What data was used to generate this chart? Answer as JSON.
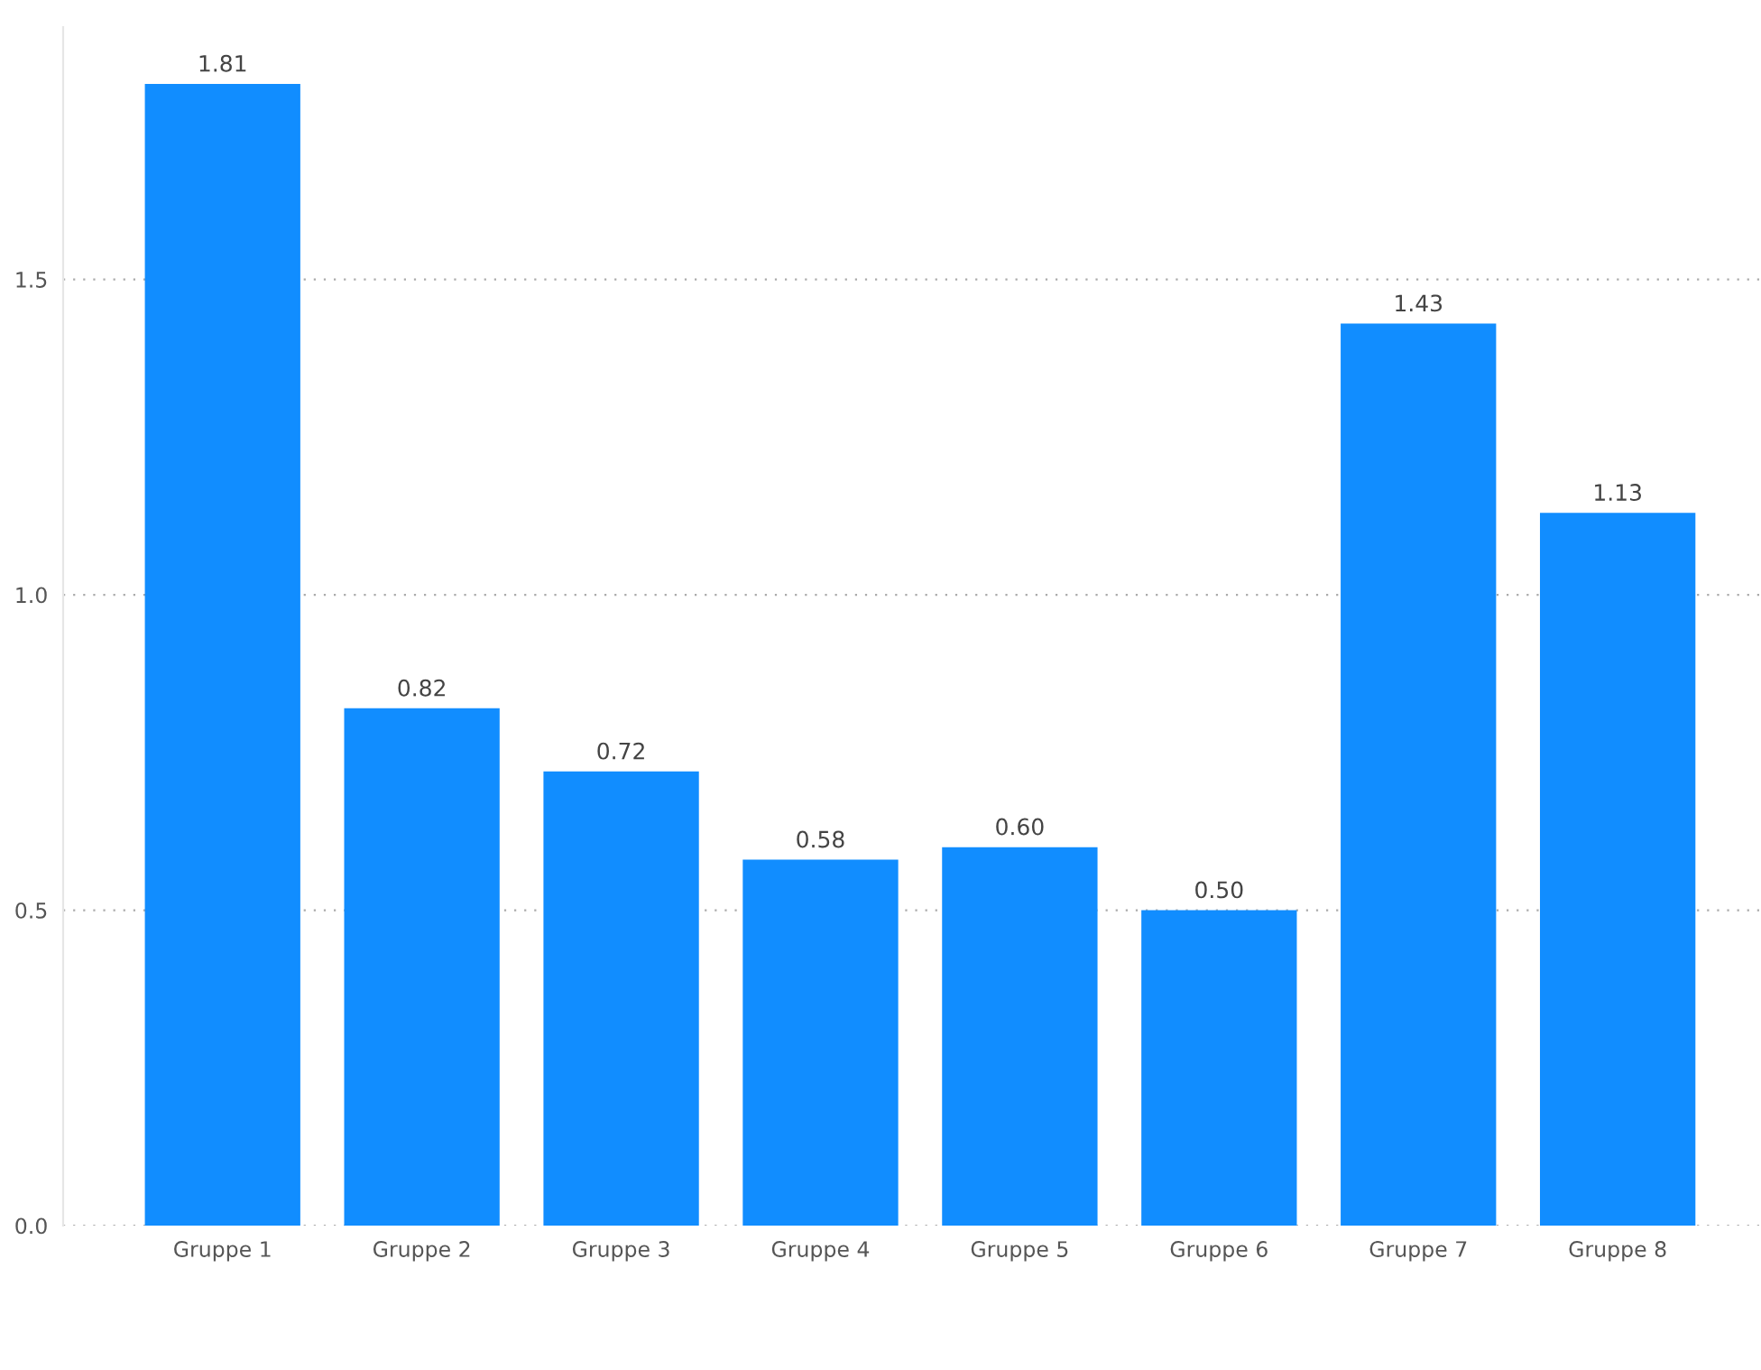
{
  "chart_data": {
    "type": "bar",
    "categories": [
      "Gruppe 1",
      "Gruppe 2",
      "Gruppe 3",
      "Gruppe 4",
      "Gruppe 5",
      "Gruppe 6",
      "Gruppe 7",
      "Gruppe 8"
    ],
    "values": [
      1.81,
      0.82,
      0.72,
      0.58,
      0.6,
      0.5,
      1.43,
      1.13
    ],
    "value_labels": [
      "1.81",
      "0.82",
      "0.72",
      "0.58",
      "0.60",
      "0.50",
      "1.43",
      "1.13"
    ],
    "color": "#118dff",
    "ylim": [
      0,
      1.9
    ],
    "yticks": [
      {
        "value": 0,
        "label": "0.0"
      },
      {
        "value": 0.5,
        "label": "0.5"
      },
      {
        "value": 1.0,
        "label": "1.0"
      },
      {
        "value": 1.5,
        "label": "1.5"
      }
    ],
    "grid": "y",
    "legend": false
  }
}
